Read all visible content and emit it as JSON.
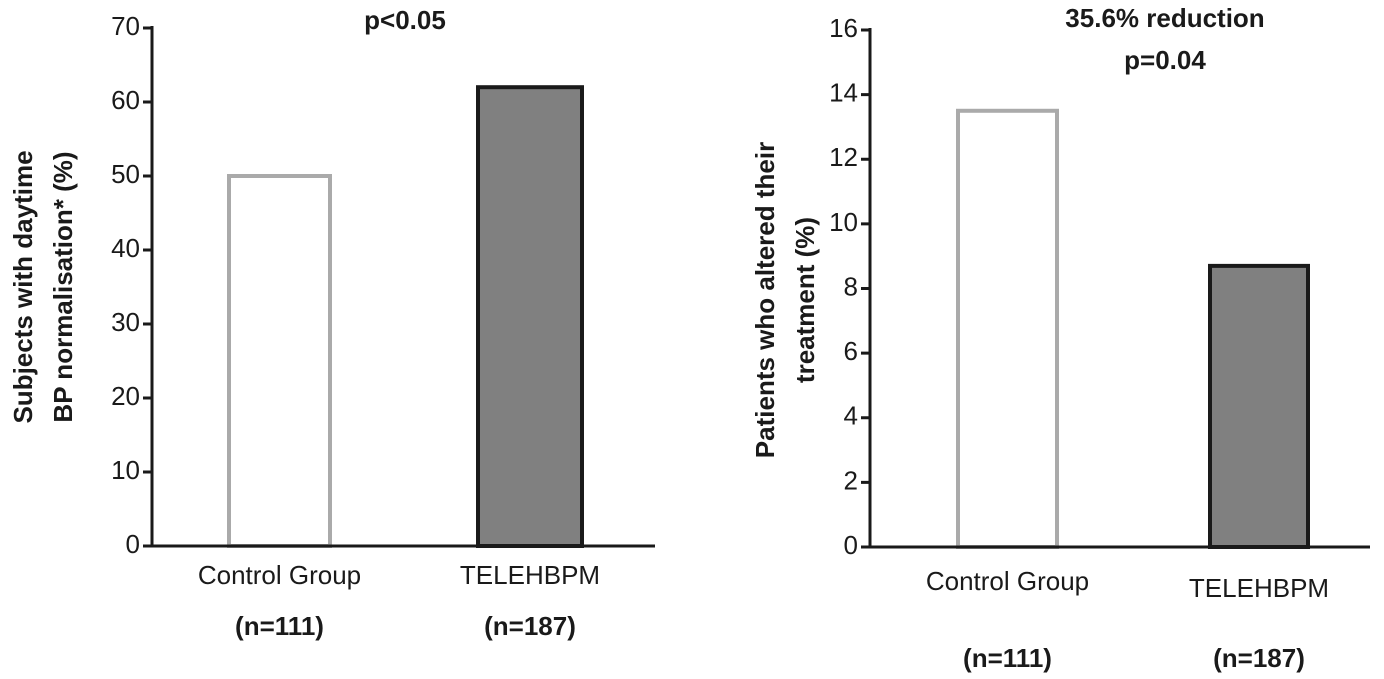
{
  "chart_data": [
    {
      "type": "bar",
      "title": "p<0.05",
      "ylabel": [
        "Subjects with daytime",
        "BP normalisation* (%)"
      ],
      "categories": [
        "Control Group",
        "TELEHBPM"
      ],
      "group_sizes": [
        "(n=111)",
        "(n=187)"
      ],
      "values": [
        50,
        62
      ],
      "colors": [
        "#ffffff",
        "#808080"
      ],
      "edge_colors": [
        "#aaaaaa",
        "#1a1a1a"
      ],
      "ylim": [
        0,
        70
      ],
      "yticks": [
        0,
        10,
        20,
        30,
        40,
        50,
        60,
        70
      ]
    },
    {
      "type": "bar",
      "title": [
        "35.6% reduction",
        "p=0.04"
      ],
      "ylabel": [
        "Patients who altered their",
        "treatment (%)"
      ],
      "categories": [
        "Control Group",
        "TELEHBPM"
      ],
      "group_sizes": [
        "(n=111)",
        "(n=187)"
      ],
      "values": [
        13.5,
        8.7
      ],
      "colors": [
        "#ffffff",
        "#808080"
      ],
      "edge_colors": [
        "#aaaaaa",
        "#1a1a1a"
      ],
      "ylim": [
        0,
        16
      ],
      "yticks": [
        0,
        2,
        4,
        6,
        8,
        10,
        12,
        14,
        16
      ]
    }
  ]
}
